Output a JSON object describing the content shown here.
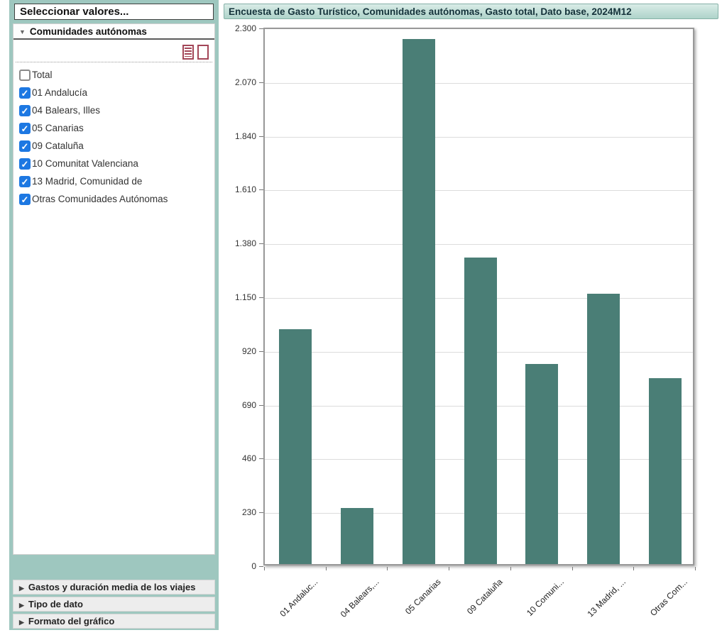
{
  "sidebar": {
    "title": "Seleccionar valores...",
    "section": {
      "label": "Comunidades autónomas",
      "items": [
        {
          "label": "Total",
          "checked": false
        },
        {
          "label": "01 Andalucía",
          "checked": true
        },
        {
          "label": "04 Balears, Illes",
          "checked": true
        },
        {
          "label": "05 Canarias",
          "checked": true
        },
        {
          "label": "09 Cataluña",
          "checked": true
        },
        {
          "label": "10 Comunitat Valenciana",
          "checked": true
        },
        {
          "label": "13 Madrid, Comunidad de",
          "checked": true
        },
        {
          "label": "Otras Comunidades Autónomas",
          "checked": true
        }
      ]
    },
    "collapsed_sections": [
      {
        "label": "Gastos y duración media de los viajes"
      },
      {
        "label": "Tipo de dato"
      },
      {
        "label": "Formato del gráfico"
      }
    ]
  },
  "chart": {
    "title": "Encuesta de Gasto Turístico, Comunidades autónomas, Gasto total, Dato base, 2024M12"
  },
  "chart_data": {
    "type": "bar",
    "title": "Encuesta de Gasto Turístico, Comunidades autónomas, Gasto total, Dato base, 2024M12",
    "categories": [
      "01 Andalucía",
      "04 Balears, Illes",
      "05 Canarias",
      "09 Cataluña",
      "10 Comunitat Valenciana",
      "13 Madrid, Comunidad de",
      "Otras Comunidades Autónomas"
    ],
    "tick_labels": [
      "01 Andaluc...",
      "04 Balears,...",
      "05 Canarias",
      "09 Cataluña",
      "10 Comuni...",
      "13 Madrid, ...",
      "Otras Com..."
    ],
    "values": [
      1005,
      240,
      2245,
      1310,
      855,
      1157,
      794
    ],
    "y_tick_labels": [
      "2.300",
      "2.070",
      "1.840",
      "1.610",
      "1.380",
      "1.150",
      "920",
      "690",
      "460",
      "230",
      "0"
    ],
    "ylim": [
      0,
      2300
    ],
    "grid": true,
    "legend": "none",
    "bar_color": "#4a7e76"
  },
  "colors": {
    "frame_teal": "#9ec7bf",
    "title_bar_teal": "#b9d9d1",
    "bar_fill": "#4a7e76",
    "checkbox_checked": "#1d78e2",
    "mini_icon_maroon": "#a34658"
  }
}
